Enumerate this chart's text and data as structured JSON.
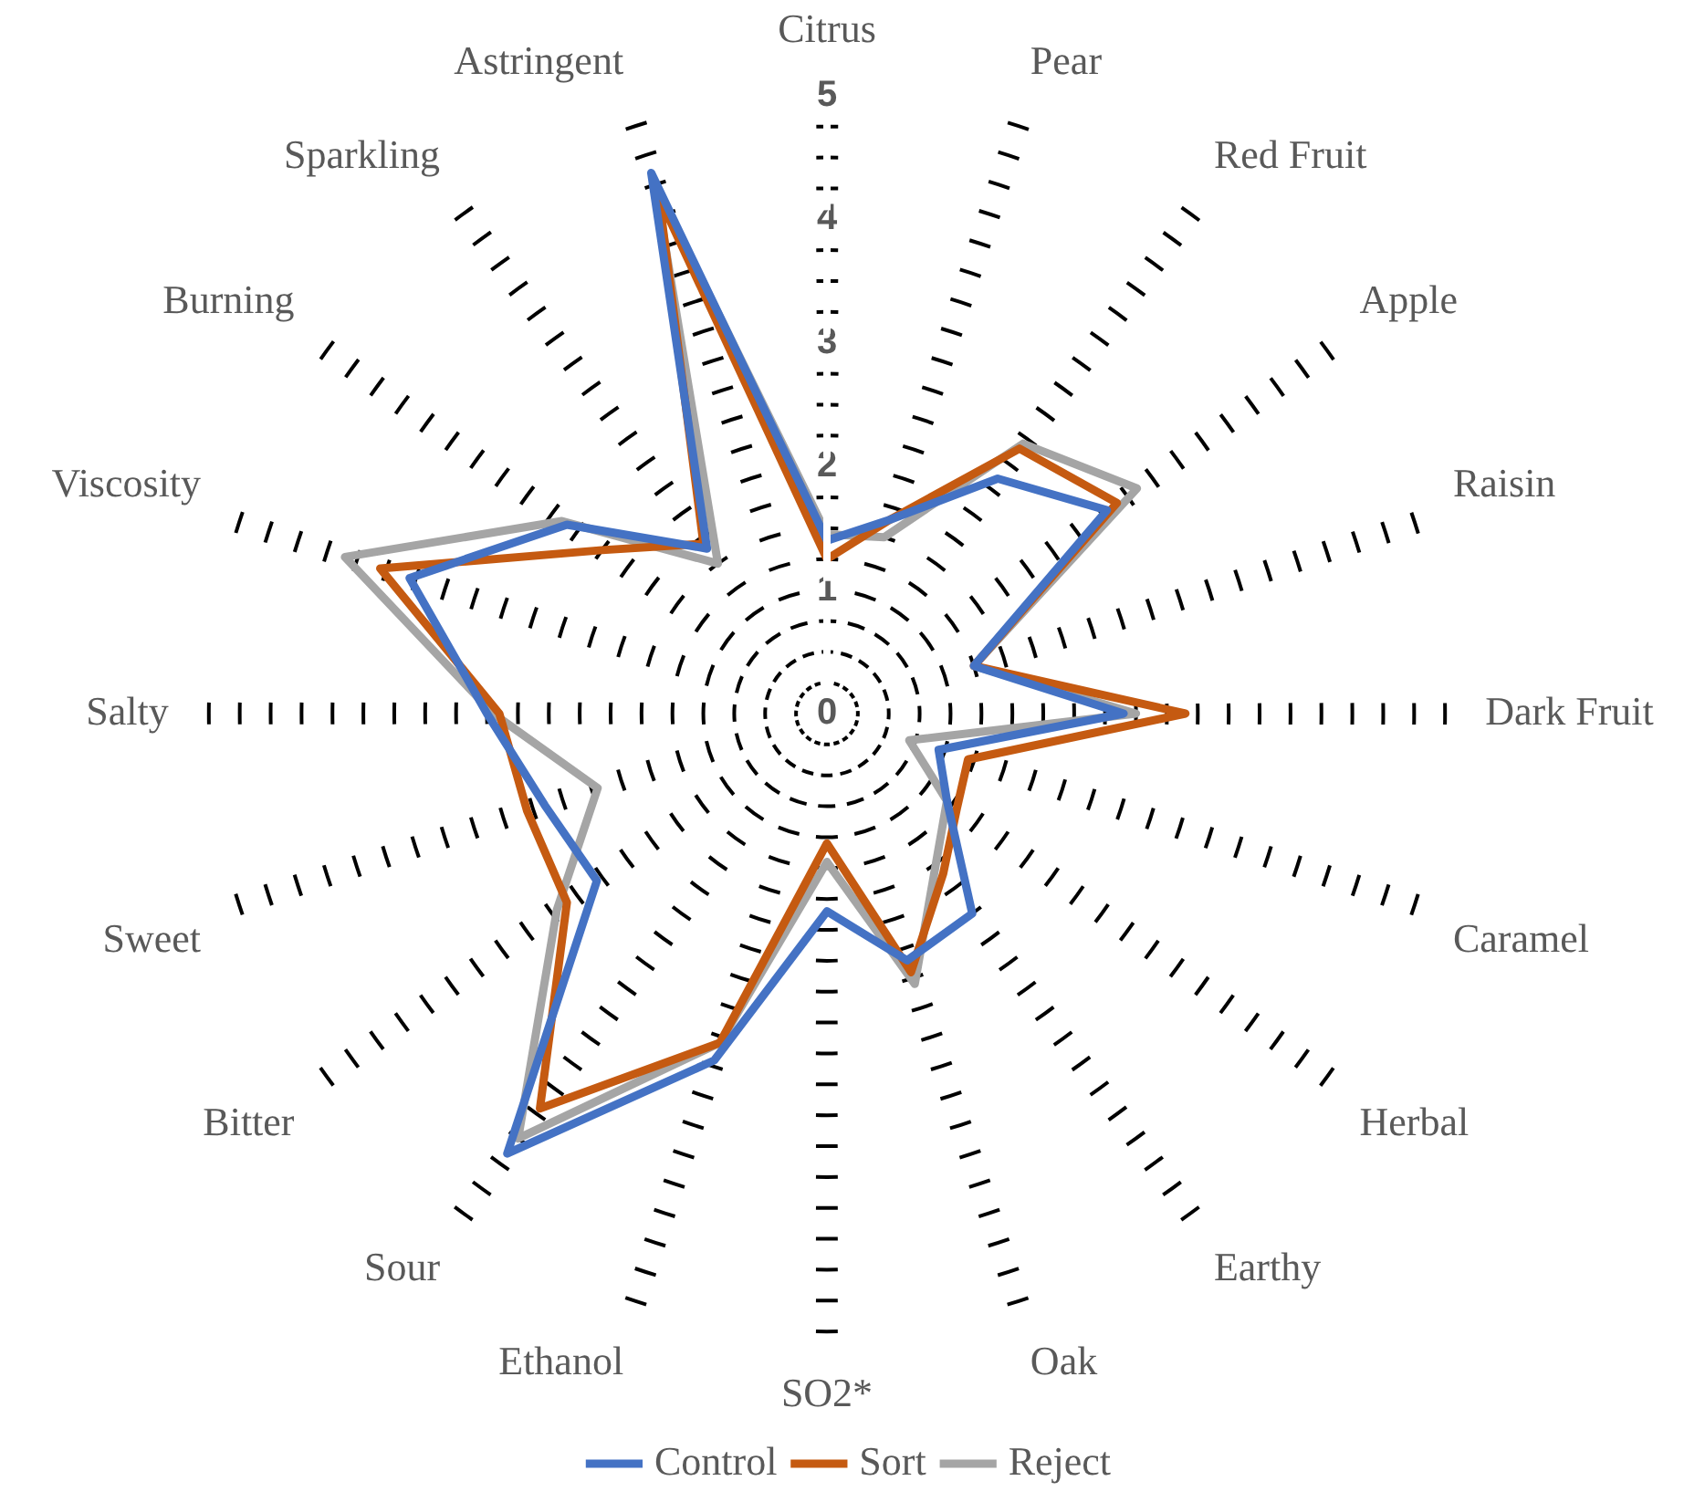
{
  "chart_data": {
    "type": "radar",
    "categories": [
      "Citrus",
      "Pear",
      "Red Fruit",
      "Apple",
      "Raisin",
      "Dark Fruit",
      "Caramel",
      "Herbal",
      "Earthy",
      "Oak",
      "SO2*",
      "Ethanol",
      "Sour",
      "Bitter",
      "Sweet",
      "Salty",
      "Viscosity",
      "Burning",
      "Sparkling",
      "Astringent"
    ],
    "series": [
      {
        "name": "Control",
        "color": "#4472c4",
        "values": [
          1.4,
          1.65,
          2.35,
          2.8,
          1.25,
          2.4,
          0.95,
          1.2,
          2.0,
          2.1,
          1.6,
          2.95,
          4.4,
          2.3,
          2.4,
          2.75,
          3.55,
          2.6,
          1.65,
          4.6
        ]
      },
      {
        "name": "Sort",
        "color": "#c55a11",
        "values": [
          1.25,
          1.65,
          2.65,
          2.9,
          1.25,
          2.9,
          1.2,
          1.3,
          1.6,
          2.2,
          1.05,
          2.8,
          3.95,
          2.6,
          2.55,
          2.65,
          3.8,
          2.25,
          1.7,
          4.4
        ]
      },
      {
        "name": "Reject",
        "color": "#a5a5a5",
        "values": [
          1.45,
          1.5,
          2.7,
          3.1,
          1.25,
          2.5,
          0.7,
          1.2,
          1.5,
          2.3,
          1.2,
          2.8,
          4.25,
          2.7,
          1.95,
          2.7,
          4.1,
          2.65,
          1.5,
          4.5
        ]
      }
    ],
    "ylim": [
      0,
      5
    ],
    "yticks": [
      0,
      1,
      2,
      3,
      4,
      5
    ],
    "grid": true,
    "legend": "bottom",
    "marker": "none",
    "line_style": "solid"
  }
}
